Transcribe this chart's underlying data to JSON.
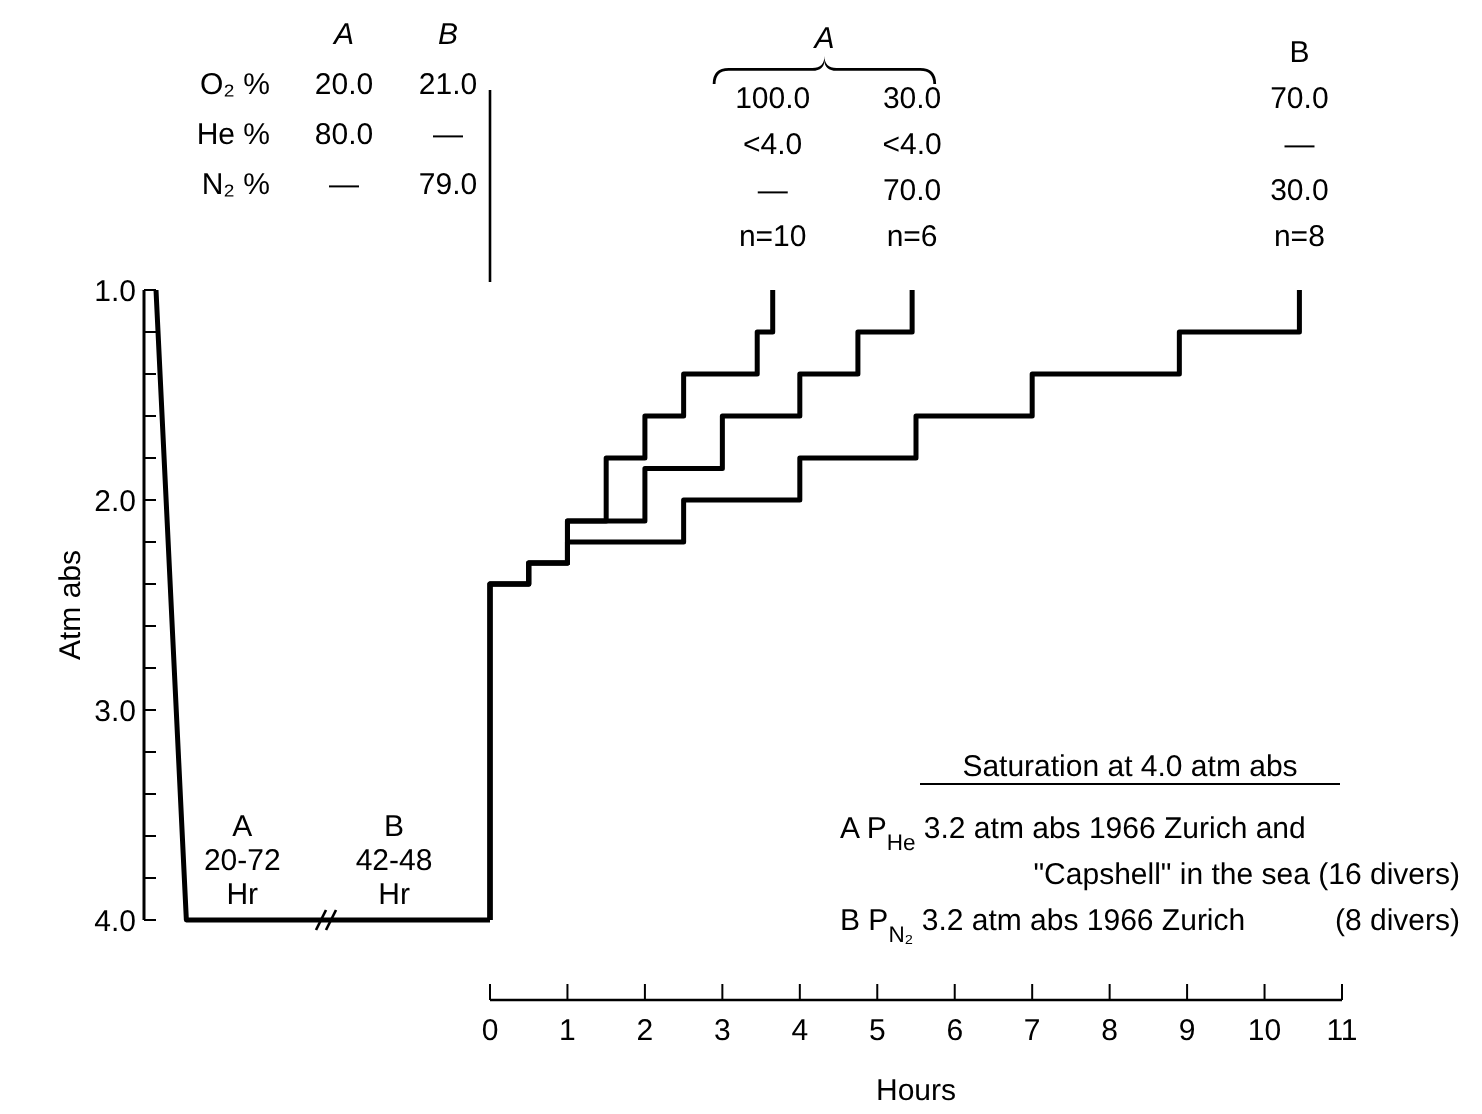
{
  "chart_data": [
    {
      "type": "line",
      "ylabel": "Atm abs",
      "categories": [
        null,
        null,
        null,
        null,
        null,
        null,
        null,
        null,
        null,
        null,
        null,
        null
      ],
      "series": [
        {
          "color": "#000000",
          "values": [
            1.0,
            4.0,
            4.0,
            4.0,
            4.0,
            4.0,
            4.0,
            4.0,
            4.0,
            4.0,
            4.0,
            4.0
          ]
        }
      ],
      "ylim": [
        4.0,
        1.0
      ],
      "yticks": [
        {
          "value": 1.0,
          "label": "1.0"
        },
        {
          "value": 1.2,
          "label": null
        },
        {
          "value": 1.4,
          "label": null
        },
        {
          "value": 1.6,
          "label": null
        },
        {
          "value": 1.8,
          "label": null
        },
        {
          "value": 2.0,
          "label": "2.0"
        },
        {
          "value": 2.2,
          "label": null
        },
        {
          "value": 2.4,
          "label": null
        },
        {
          "value": 2.6,
          "label": null
        },
        {
          "value": 2.8,
          "label": null
        },
        {
          "value": 3.0,
          "label": "3.0"
        },
        {
          "value": 3.2,
          "label": null
        },
        {
          "value": 3.4,
          "label": null
        },
        {
          "value": 3.6,
          "label": null
        },
        {
          "value": 3.8,
          "label": null
        },
        {
          "value": 4.0,
          "label": "4.0"
        }
      ],
      "tick_labels": "y",
      "annotations": [
        "\tA\tB",
        "O₂ %\t20.0\t21.0",
        "He %\t80.0\t—",
        "N₂ %\t—\t79.0",
        "A\n20-72\nHr",
        "B\n42-48\nHr"
      ]
    },
    {
      "type": "step",
      "xlabel": "Hours",
      "series": [
        {
          "color": "#000000",
          "x": [
            0,
            0,
            0.5,
            1,
            1.5,
            2,
            2.5,
            3.45,
            3.65
          ],
          "values": [
            4.0,
            2.4,
            2.3,
            2.1,
            1.8,
            1.6,
            1.4,
            1.2,
            1.0
          ]
        },
        {
          "color": "#000000",
          "x": [
            0,
            0,
            0.5,
            1,
            2,
            3,
            4,
            4.75,
            5.45
          ],
          "values": [
            4.0,
            2.4,
            2.3,
            2.1,
            1.85,
            1.6,
            1.4,
            1.2,
            1.0
          ]
        },
        {
          "color": "#000000",
          "x": [
            0,
            0,
            0.5,
            1,
            2.5,
            4,
            5.5,
            7,
            8.9,
            10.45
          ],
          "values": [
            4.0,
            2.4,
            2.3,
            2.2,
            2.0,
            1.8,
            1.6,
            1.4,
            1.2,
            1.0
          ]
        }
      ],
      "xlim": [
        0,
        11
      ],
      "xticks": [
        0,
        1,
        2,
        3,
        4,
        5,
        6,
        7,
        8,
        9,
        10,
        11
      ],
      "ylim": [
        4.0,
        1.0
      ],
      "tick_labels": "x",
      "annotations": [
        {
          "text": "100.0\n<4.0\n—\nn=10",
          "x": 3.65,
          "y": 1.0
        },
        {
          "text": "30.0\n<4.0\n70.0\nn=6",
          "x": 5.45,
          "y": 1.0
        },
        {
          "text": "B\n70.0\n—\n30.0\nn=8",
          "x": 10.45,
          "y": 1.0
        },
        "A",
        "Saturation at 4.0 atm abs",
        "A P$_{He}$ 3.2 atm abs 1966 Zurich and",
        "\t\"Capshell\" in the sea (16 divers)",
        "B P$_{N₂}$ 3.2 atm abs 1966 Zurich\t(8 divers)"
      ]
    }
  ]
}
